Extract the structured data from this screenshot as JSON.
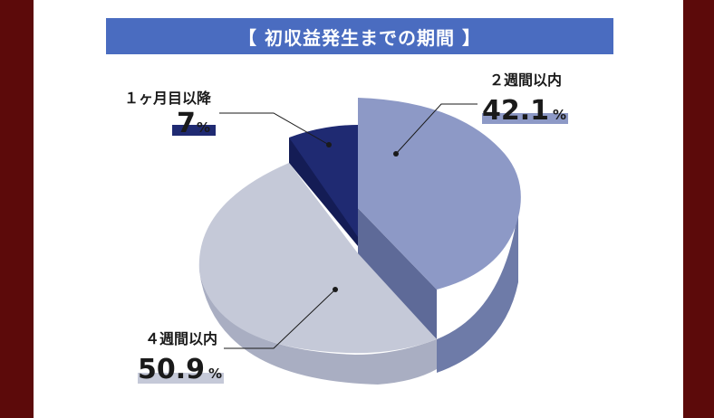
{
  "title": "【 初収益発生までの期間 】",
  "colors": {
    "frame": "#5c0a0a",
    "title_bg": "#4a6cc0",
    "slice_2weeks_top": "#8d99c6",
    "slice_2weeks_side": "#6e7ba8",
    "slice_4weeks_top": "#c5c9d8",
    "slice_4weeks_side": "#a9aec2",
    "slice_1month_top": "#1f2a72",
    "slice_1month_side": "#141c55"
  },
  "chart_data": {
    "type": "pie",
    "title": "【 初収益発生までの期間 】",
    "categories": [
      "２週間以内",
      "４週間以内",
      "１ヶ月目以降"
    ],
    "values": [
      42.1,
      50.9,
      7
    ],
    "labels": [
      {
        "name": "２週間以内",
        "value": "42.1",
        "unit": "%"
      },
      {
        "name": "４週間以内",
        "value": "50.9",
        "unit": "%"
      },
      {
        "name": "１ヶ月目以降",
        "value": "7",
        "unit": "%"
      }
    ]
  }
}
